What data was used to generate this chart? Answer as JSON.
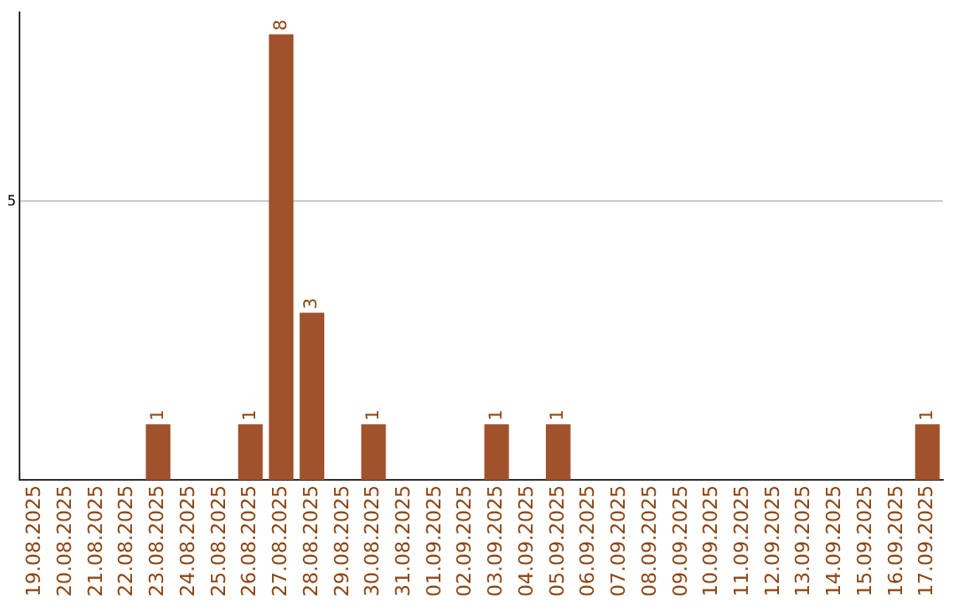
{
  "chart_data": {
    "type": "bar",
    "categories": [
      "19.08.2025",
      "20.08.2025",
      "21.08.2025",
      "22.08.2025",
      "23.08.2025",
      "24.08.2025",
      "25.08.2025",
      "26.08.2025",
      "27.08.2025",
      "28.08.2025",
      "29.08.2025",
      "30.08.2025",
      "31.08.2025",
      "01.09.2025",
      "02.09.2025",
      "03.09.2025",
      "04.09.2025",
      "05.09.2025",
      "06.09.2025",
      "07.09.2025",
      "08.09.2025",
      "09.09.2025",
      "10.09.2025",
      "11.09.2025",
      "12.09.2025",
      "13.09.2025",
      "14.09.2025",
      "15.09.2025",
      "16.09.2025",
      "17.09.2025"
    ],
    "values": [
      0,
      0,
      0,
      0,
      1,
      0,
      0,
      1,
      8,
      3,
      0,
      1,
      0,
      0,
      0,
      1,
      0,
      1,
      0,
      0,
      0,
      0,
      0,
      0,
      0,
      0,
      0,
      0,
      0,
      1
    ],
    "value_labels": [
      null,
      null,
      null,
      null,
      "1",
      null,
      null,
      "1",
      "8",
      "3",
      null,
      "1",
      null,
      null,
      null,
      "1",
      null,
      "1",
      null,
      null,
      null,
      null,
      null,
      null,
      null,
      null,
      null,
      null,
      null,
      "1"
    ],
    "color": "#a0522d",
    "ylim": [
      0,
      8.4
    ],
    "yticks": [
      5
    ],
    "grid": "y",
    "legend": false
  }
}
